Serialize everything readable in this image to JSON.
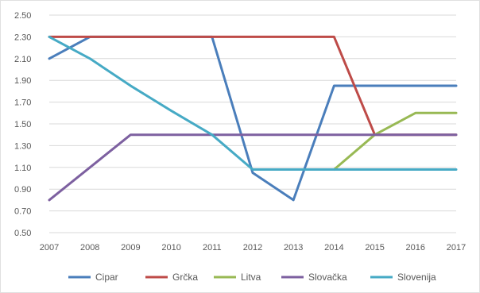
{
  "chart_data": {
    "type": "line",
    "title": "",
    "xlabel": "",
    "ylabel": "",
    "x": [
      "2007",
      "2008",
      "2009",
      "2010",
      "2011",
      "2012",
      "2013",
      "2014",
      "2015",
      "2016",
      "2017"
    ],
    "y_ticks": [
      "2.50",
      "2.30",
      "2.10",
      "1.90",
      "1.70",
      "1.50",
      "1.30",
      "1.10",
      "0.90",
      "0.70",
      "0.50"
    ],
    "ylim": [
      0.5,
      2.5
    ],
    "grid": true,
    "legend_position": "bottom",
    "series": [
      {
        "name": "Cipar",
        "color": "#4a7ebb",
        "values": [
          2.1,
          2.3,
          2.3,
          2.3,
          2.3,
          1.05,
          0.8,
          1.85,
          1.85,
          1.85,
          1.85
        ]
      },
      {
        "name": "Grčka",
        "color": "#be4b48",
        "values": [
          2.3,
          2.3,
          2.3,
          2.3,
          2.3,
          2.3,
          2.3,
          2.3,
          1.4,
          1.4,
          1.4
        ]
      },
      {
        "name": "Litva",
        "color": "#98b954",
        "values": [
          null,
          null,
          null,
          null,
          null,
          null,
          null,
          1.08,
          1.4,
          1.6,
          1.6
        ]
      },
      {
        "name": "Slovačka",
        "color": "#7d60a0",
        "values": [
          0.8,
          1.1,
          1.4,
          1.4,
          1.4,
          1.4,
          1.4,
          1.4,
          1.4,
          1.4,
          1.4
        ]
      },
      {
        "name": "Slovenija",
        "color": "#46aac5",
        "values": [
          2.3,
          2.1,
          1.85,
          1.62,
          1.4,
          1.08,
          1.08,
          1.08,
          1.08,
          1.08,
          1.08
        ]
      }
    ]
  }
}
